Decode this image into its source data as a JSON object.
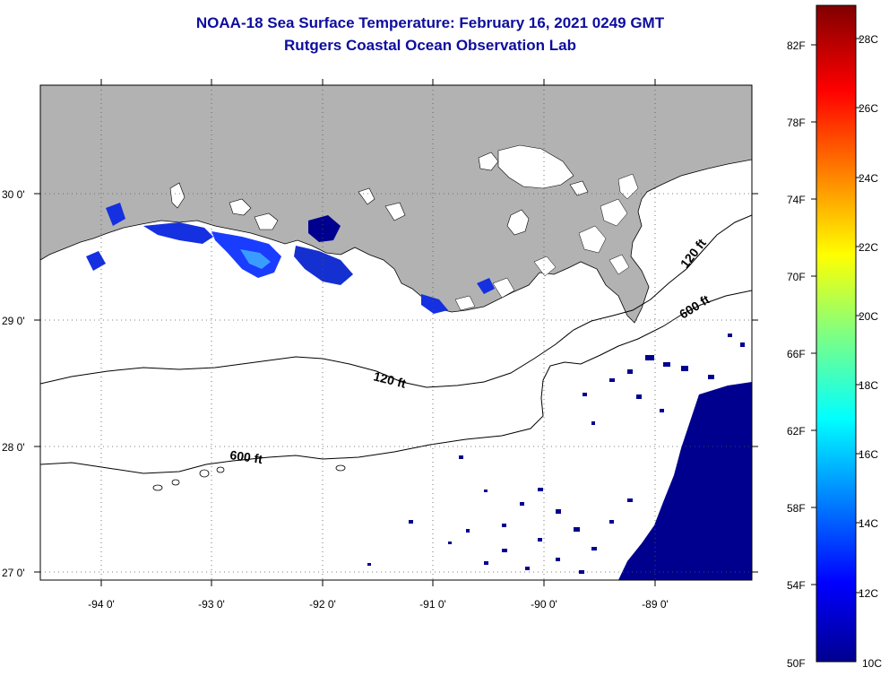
{
  "header": {
    "title": "NOAA-18 Sea Surface Temperature:  February 16, 2021 0249 GMT",
    "subtitle": "Rutgers Coastal Ocean Observation Lab"
  },
  "map": {
    "lat_labels": [
      "30 0'",
      "29 0'",
      "28 0'",
      "27 0'"
    ],
    "lon_labels": [
      "-94 0'",
      "-93 0'",
      "-92 0'",
      "-91 0'",
      "-90 0'",
      "-89 0'"
    ],
    "contour_labels": {
      "shelf_120_west": "120 ft",
      "shelf_120_east": "120 ft",
      "slope_600_west": "600 ft",
      "slope_600_east": "600 ft"
    },
    "colors": {
      "land": "#b2b2b2",
      "ocean_clear": "#ffffff",
      "sst_cold": "#00008f",
      "sst_blue": "#1a3cff",
      "sst_light": "#3a9cff"
    }
  },
  "colorbar": {
    "fahrenheit_labels": [
      "82F",
      "78F",
      "74F",
      "70F",
      "66F",
      "62F",
      "58F",
      "54F",
      "50F"
    ],
    "celsius_labels": [
      "28C",
      "26C",
      "24C",
      "22C",
      "20C",
      "18C",
      "16C",
      "14C",
      "12C",
      "10C"
    ],
    "colors": [
      "#00008f",
      "#0000ff",
      "#0080ff",
      "#00ffff",
      "#80ff80",
      "#ffff00",
      "#ff8000",
      "#ff0000",
      "#800000"
    ]
  }
}
